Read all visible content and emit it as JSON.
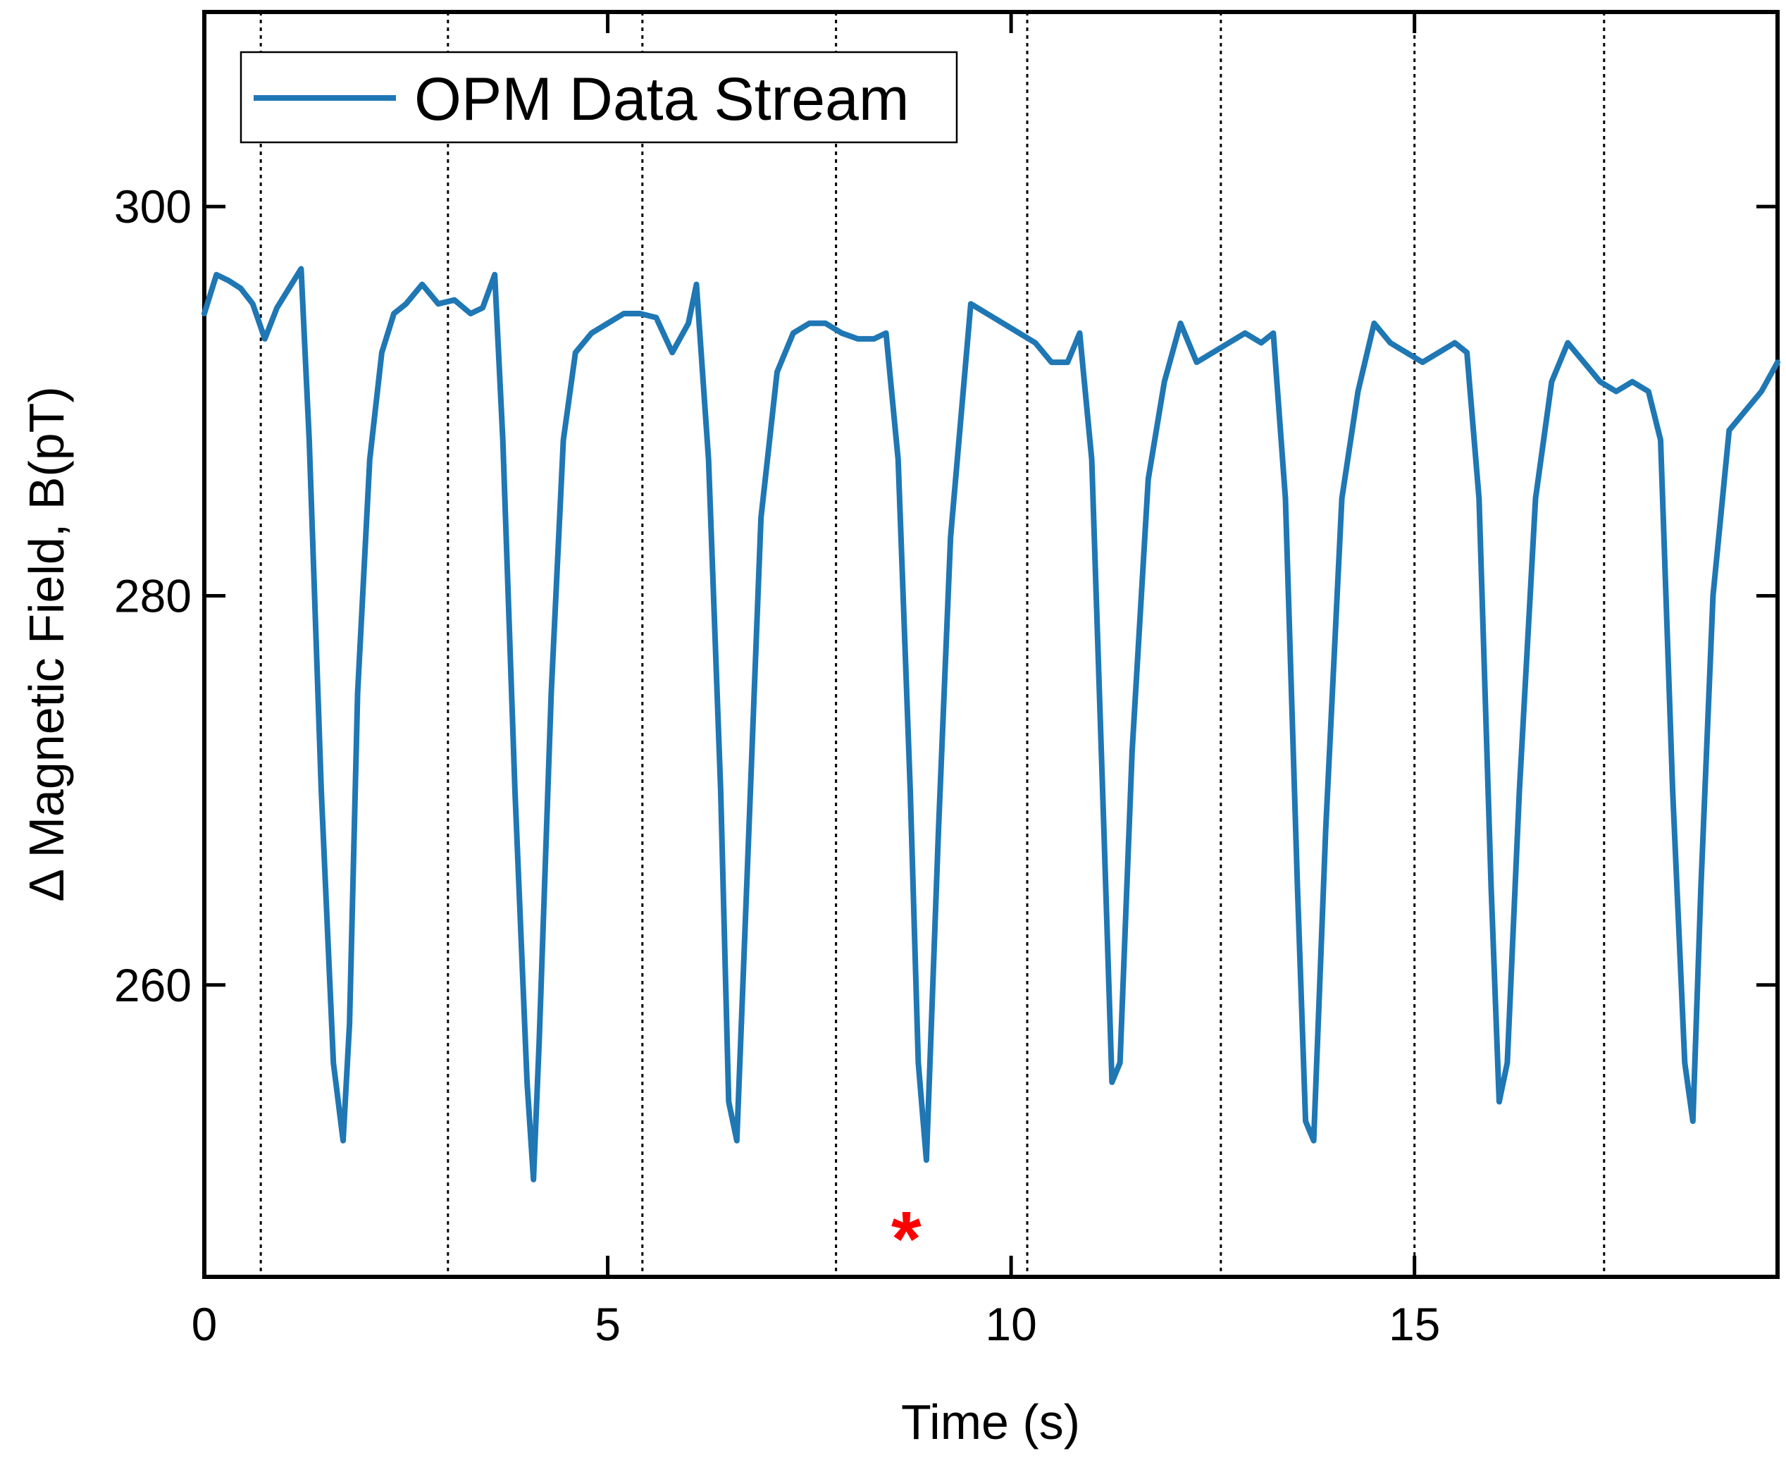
{
  "chart_data": {
    "type": "line",
    "title": "",
    "xlabel": "Time (s)",
    "ylabel": "Δ Magnetic Field, B(pT)",
    "xlim": [
      0,
      19.5
    ],
    "ylim": [
      245,
      310
    ],
    "xticks": [
      0,
      5,
      10,
      15
    ],
    "yticks": [
      260,
      280,
      300
    ],
    "grid": false,
    "legend": {
      "position": "top-left",
      "entries": [
        "OPM Data Stream"
      ]
    },
    "series": [
      {
        "name": "OPM Data Stream",
        "color": "#1f77b4",
        "x": [
          0.0,
          0.15,
          0.3,
          0.45,
          0.6,
          0.75,
          0.9,
          1.05,
          1.2,
          1.3,
          1.45,
          1.6,
          1.72,
          1.8,
          1.9,
          2.05,
          2.2,
          2.35,
          2.5,
          2.7,
          2.9,
          3.1,
          3.3,
          3.45,
          3.6,
          3.7,
          3.85,
          4.0,
          4.08,
          4.15,
          4.3,
          4.45,
          4.6,
          4.8,
          5.0,
          5.2,
          5.4,
          5.6,
          5.8,
          6.0,
          6.1,
          6.25,
          6.4,
          6.5,
          6.6,
          6.75,
          6.9,
          7.1,
          7.3,
          7.5,
          7.7,
          7.9,
          8.1,
          8.3,
          8.45,
          8.6,
          8.75,
          8.85,
          8.95,
          9.1,
          9.25,
          9.5,
          9.7,
          9.9,
          10.1,
          10.3,
          10.5,
          10.7,
          10.85,
          11.0,
          11.15,
          11.25,
          11.35,
          11.5,
          11.7,
          11.9,
          12.1,
          12.3,
          12.5,
          12.7,
          12.9,
          13.1,
          13.25,
          13.4,
          13.55,
          13.65,
          13.75,
          13.9,
          14.1,
          14.3,
          14.5,
          14.7,
          14.9,
          15.1,
          15.3,
          15.5,
          15.65,
          15.8,
          15.95,
          16.05,
          16.15,
          16.3,
          16.5,
          16.7,
          16.9,
          17.1,
          17.3,
          17.5,
          17.7,
          17.9,
          18.05,
          18.2,
          18.35,
          18.45,
          18.55,
          18.7,
          18.9,
          19.1,
          19.3,
          19.5
        ],
        "values": [
          294.5,
          296.5,
          296.2,
          295.8,
          295.0,
          293.2,
          294.8,
          295.8,
          296.8,
          288,
          270,
          256,
          252,
          258,
          275,
          287,
          292.5,
          294.5,
          295.0,
          296.0,
          295.0,
          295.2,
          294.5,
          294.8,
          296.5,
          288,
          270,
          255,
          250,
          257,
          275,
          288,
          292.5,
          293.5,
          294.0,
          294.5,
          294.5,
          294.3,
          292.5,
          294.0,
          296.0,
          287,
          270,
          254,
          252,
          268,
          284,
          291.5,
          293.5,
          294.0,
          294.0,
          293.5,
          293.2,
          293.2,
          293.5,
          287,
          270,
          256,
          251,
          268,
          283,
          295.0,
          294.5,
          294.0,
          293.5,
          293.0,
          292.0,
          292.0,
          293.5,
          287,
          268,
          255,
          256,
          272,
          286,
          291.0,
          294.0,
          292.0,
          292.5,
          293.0,
          293.5,
          293.0,
          293.5,
          285,
          265,
          253,
          252,
          268,
          285,
          290.5,
          294.0,
          293.0,
          292.5,
          292.0,
          292.5,
          293.0,
          292.5,
          285,
          265,
          254,
          256,
          270,
          285,
          291.0,
          293.0,
          292.0,
          291.0,
          290.5,
          291.0,
          290.5,
          288,
          270,
          256,
          253,
          265,
          280,
          288.5,
          289.5,
          290.5,
          292.0
        ]
      }
    ],
    "vertical_lines_x": [
      0.7,
      3.02,
      5.43,
      7.83,
      10.2,
      12.6,
      15.0,
      17.35
    ],
    "annotations": [
      {
        "text": "*",
        "x": 8.7,
        "y": 247.2,
        "color": "#ff0000"
      }
    ]
  }
}
